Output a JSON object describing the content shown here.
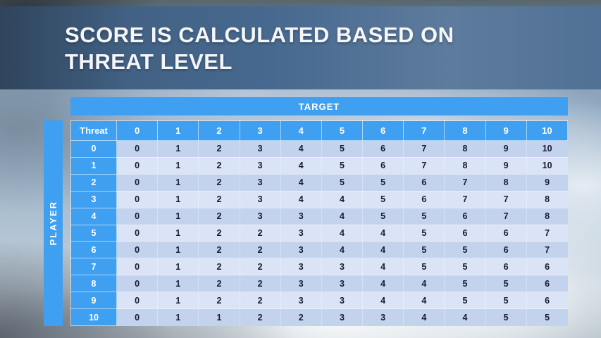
{
  "title": {
    "line1": "SCORE IS CALCULATED BASED ON",
    "line2": "THREAT LEVEL"
  },
  "matrix": {
    "target_label": "TARGET",
    "player_label": "PLAYER",
    "corner_label": "Threat"
  },
  "colors": {
    "accent_blue": "#3fa0f2",
    "row_band_dark": "#c3d3ee",
    "row_band_light": "#dbe4f6",
    "banner_blue": "#47698f",
    "cell_text": "#181a30",
    "title_text": "#f4f6f8"
  },
  "chart_data": {
    "type": "table",
    "title": "Score by player threat level (rows) vs target threat level (columns)",
    "row_axis_label": "PLAYER",
    "col_axis_label": "TARGET",
    "corner_label": "Threat",
    "columns": [
      "0",
      "1",
      "2",
      "3",
      "4",
      "5",
      "6",
      "7",
      "8",
      "9",
      "10"
    ],
    "rows": [
      {
        "label": "0",
        "values": [
          0,
          1,
          2,
          3,
          4,
          5,
          6,
          7,
          8,
          9,
          10
        ]
      },
      {
        "label": "1",
        "values": [
          0,
          1,
          2,
          3,
          4,
          5,
          6,
          7,
          8,
          9,
          10
        ]
      },
      {
        "label": "2",
        "values": [
          0,
          1,
          2,
          3,
          4,
          5,
          5,
          6,
          7,
          8,
          9
        ]
      },
      {
        "label": "3",
        "values": [
          0,
          1,
          2,
          3,
          4,
          4,
          5,
          6,
          7,
          7,
          8
        ]
      },
      {
        "label": "4",
        "values": [
          0,
          1,
          2,
          3,
          3,
          4,
          5,
          5,
          6,
          7,
          8
        ]
      },
      {
        "label": "5",
        "values": [
          0,
          1,
          2,
          2,
          3,
          4,
          4,
          5,
          6,
          6,
          7
        ]
      },
      {
        "label": "6",
        "values": [
          0,
          1,
          2,
          2,
          3,
          4,
          4,
          5,
          5,
          6,
          7
        ]
      },
      {
        "label": "7",
        "values": [
          0,
          1,
          2,
          2,
          3,
          3,
          4,
          5,
          5,
          6,
          6
        ]
      },
      {
        "label": "8",
        "values": [
          0,
          1,
          2,
          2,
          3,
          3,
          4,
          4,
          5,
          5,
          6
        ]
      },
      {
        "label": "9",
        "values": [
          0,
          1,
          2,
          2,
          3,
          3,
          4,
          4,
          5,
          5,
          6
        ]
      },
      {
        "label": "10",
        "values": [
          0,
          1,
          1,
          2,
          2,
          3,
          3,
          4,
          4,
          5,
          5
        ]
      }
    ]
  }
}
